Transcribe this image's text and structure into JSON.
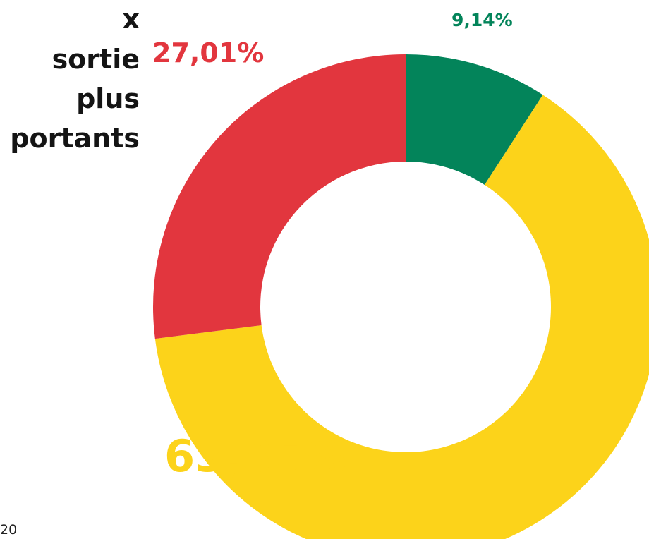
{
  "title_lines": [
    "x",
    "sortie",
    "plus",
    "portants"
  ],
  "page_number": "20",
  "colors": {
    "green": "#03845a",
    "yellow": "#fcd31a",
    "red": "#e2363e",
    "title": "#141414"
  },
  "chart_data": {
    "type": "pie",
    "donut": true,
    "start_angle_deg": 0,
    "direction": "clockwise",
    "slices": [
      {
        "label": "9,14%",
        "value": 9.14,
        "color": "#03845a"
      },
      {
        "label": "63,85%",
        "value": 63.85,
        "color": "#fcd31a"
      },
      {
        "label": "27,01%",
        "value": 27.01,
        "color": "#e2363e"
      }
    ],
    "title": "",
    "legend": "none"
  }
}
